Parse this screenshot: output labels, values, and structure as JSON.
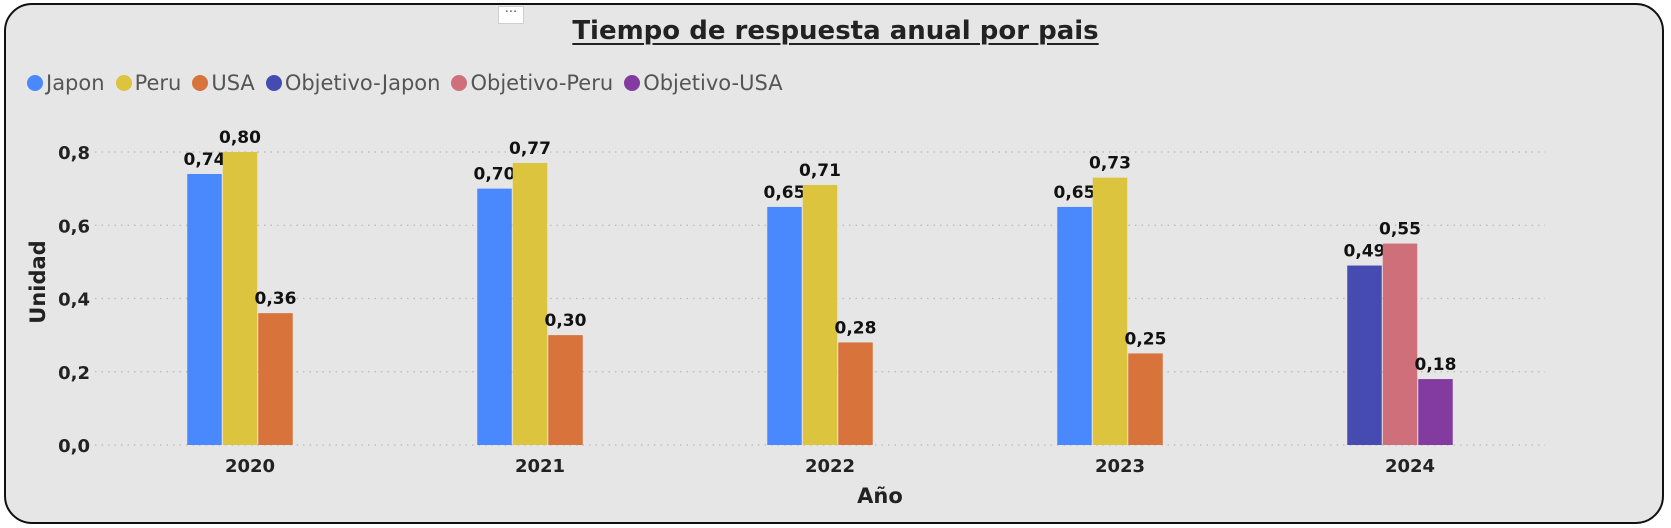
{
  "chart_data": {
    "type": "bar",
    "title": "Tiempo de respuesta anual por pais",
    "xlabel": "Año",
    "ylabel": "Unidad",
    "categories": [
      "2020",
      "2021",
      "2022",
      "2023",
      "2024"
    ],
    "ylim": [
      0,
      0.8
    ],
    "yticks": [
      "0,0",
      "0,2",
      "0,4",
      "0,6",
      "0,8"
    ],
    "grid": true,
    "legend_position": "top-left",
    "series": [
      {
        "name": "Japon",
        "color": "#4a89fd",
        "values": [
          0.74,
          0.7,
          0.65,
          0.65,
          null
        ],
        "labels": [
          "0,74",
          "0,70",
          "0,65",
          "0,65",
          null
        ]
      },
      {
        "name": "Peru",
        "color": "#dcc43f",
        "values": [
          0.8,
          0.77,
          0.71,
          0.73,
          null
        ],
        "labels": [
          "0,80",
          "0,77",
          "0,71",
          "0,73",
          null
        ]
      },
      {
        "name": "USA",
        "color": "#d9733c",
        "values": [
          0.36,
          0.3,
          0.28,
          0.25,
          null
        ],
        "labels": [
          "0,36",
          "0,30",
          "0,28",
          "0,25",
          null
        ]
      },
      {
        "name": "Objetivo-Japon",
        "color": "#464bb2",
        "values": [
          null,
          null,
          null,
          null,
          0.49
        ],
        "labels": [
          null,
          null,
          null,
          null,
          "0,49"
        ]
      },
      {
        "name": "Objetivo-Peru",
        "color": "#cf6f79",
        "values": [
          null,
          null,
          null,
          null,
          0.55
        ],
        "labels": [
          null,
          null,
          null,
          null,
          "0,55"
        ]
      },
      {
        "name": "Objetivo-USA",
        "color": "#833ba0",
        "values": [
          null,
          null,
          null,
          null,
          0.18
        ],
        "labels": [
          null,
          null,
          null,
          null,
          "0,18"
        ]
      }
    ]
  },
  "more_options_label": "···"
}
